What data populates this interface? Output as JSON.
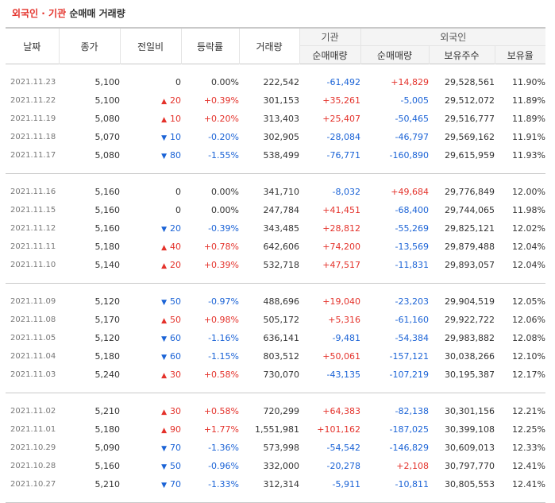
{
  "title": {
    "part1": "외국인",
    "dot": " · ",
    "part2": "기관",
    "part3": " 순매매 거래량"
  },
  "headers": {
    "date": "날짜",
    "close": "종가",
    "change": "전일비",
    "rate": "등락률",
    "volume": "거래량",
    "institution": "기관",
    "inst_net": "순매매량",
    "foreign": "외국인",
    "for_net": "순매매량",
    "holdings": "보유주수",
    "ratio": "보유율"
  },
  "colors": {
    "up": "#e4322b",
    "down": "#1b63d6"
  },
  "groups": [
    [
      {
        "date": "2021.11.23",
        "close": "5,100",
        "dir": "none",
        "change": "0",
        "rate": "0.00%",
        "rate_dir": "none",
        "volume": "222,542",
        "inst": "-61,492",
        "inst_dir": "down",
        "foreign": "+14,829",
        "foreign_dir": "up",
        "holdings": "29,528,561",
        "ratio": "11.90%"
      },
      {
        "date": "2021.11.22",
        "close": "5,100",
        "dir": "up",
        "change": "20",
        "rate": "+0.39%",
        "rate_dir": "up",
        "volume": "301,153",
        "inst": "+35,261",
        "inst_dir": "up",
        "foreign": "-5,005",
        "foreign_dir": "down",
        "holdings": "29,512,072",
        "ratio": "11.89%"
      },
      {
        "date": "2021.11.19",
        "close": "5,080",
        "dir": "up",
        "change": "10",
        "rate": "+0.20%",
        "rate_dir": "up",
        "volume": "313,403",
        "inst": "+25,407",
        "inst_dir": "up",
        "foreign": "-50,465",
        "foreign_dir": "down",
        "holdings": "29,516,777",
        "ratio": "11.89%"
      },
      {
        "date": "2021.11.18",
        "close": "5,070",
        "dir": "down",
        "change": "10",
        "rate": "-0.20%",
        "rate_dir": "down",
        "volume": "302,905",
        "inst": "-28,084",
        "inst_dir": "down",
        "foreign": "-46,797",
        "foreign_dir": "down",
        "holdings": "29,569,162",
        "ratio": "11.91%"
      },
      {
        "date": "2021.11.17",
        "close": "5,080",
        "dir": "down",
        "change": "80",
        "rate": "-1.55%",
        "rate_dir": "down",
        "volume": "538,499",
        "inst": "-76,771",
        "inst_dir": "down",
        "foreign": "-160,890",
        "foreign_dir": "down",
        "holdings": "29,615,959",
        "ratio": "11.93%"
      }
    ],
    [
      {
        "date": "2021.11.16",
        "close": "5,160",
        "dir": "none",
        "change": "0",
        "rate": "0.00%",
        "rate_dir": "none",
        "volume": "341,710",
        "inst": "-8,032",
        "inst_dir": "down",
        "foreign": "+49,684",
        "foreign_dir": "up",
        "holdings": "29,776,849",
        "ratio": "12.00%"
      },
      {
        "date": "2021.11.15",
        "close": "5,160",
        "dir": "none",
        "change": "0",
        "rate": "0.00%",
        "rate_dir": "none",
        "volume": "247,784",
        "inst": "+41,451",
        "inst_dir": "up",
        "foreign": "-68,400",
        "foreign_dir": "down",
        "holdings": "29,744,065",
        "ratio": "11.98%"
      },
      {
        "date": "2021.11.12",
        "close": "5,160",
        "dir": "down",
        "change": "20",
        "rate": "-0.39%",
        "rate_dir": "down",
        "volume": "343,485",
        "inst": "+28,812",
        "inst_dir": "up",
        "foreign": "-55,269",
        "foreign_dir": "down",
        "holdings": "29,825,121",
        "ratio": "12.02%"
      },
      {
        "date": "2021.11.11",
        "close": "5,180",
        "dir": "up",
        "change": "40",
        "rate": "+0.78%",
        "rate_dir": "up",
        "volume": "642,606",
        "inst": "+74,200",
        "inst_dir": "up",
        "foreign": "-13,569",
        "foreign_dir": "down",
        "holdings": "29,879,488",
        "ratio": "12.04%"
      },
      {
        "date": "2021.11.10",
        "close": "5,140",
        "dir": "up",
        "change": "20",
        "rate": "+0.39%",
        "rate_dir": "up",
        "volume": "532,718",
        "inst": "+47,517",
        "inst_dir": "up",
        "foreign": "-11,831",
        "foreign_dir": "down",
        "holdings": "29,893,057",
        "ratio": "12.04%"
      }
    ],
    [
      {
        "date": "2021.11.09",
        "close": "5,120",
        "dir": "down",
        "change": "50",
        "rate": "-0.97%",
        "rate_dir": "down",
        "volume": "488,696",
        "inst": "+19,040",
        "inst_dir": "up",
        "foreign": "-23,203",
        "foreign_dir": "down",
        "holdings": "29,904,519",
        "ratio": "12.05%"
      },
      {
        "date": "2021.11.08",
        "close": "5,170",
        "dir": "up",
        "change": "50",
        "rate": "+0.98%",
        "rate_dir": "up",
        "volume": "505,172",
        "inst": "+5,316",
        "inst_dir": "up",
        "foreign": "-61,160",
        "foreign_dir": "down",
        "holdings": "29,922,722",
        "ratio": "12.06%"
      },
      {
        "date": "2021.11.05",
        "close": "5,120",
        "dir": "down",
        "change": "60",
        "rate": "-1.16%",
        "rate_dir": "down",
        "volume": "636,141",
        "inst": "-9,481",
        "inst_dir": "down",
        "foreign": "-54,384",
        "foreign_dir": "down",
        "holdings": "29,983,882",
        "ratio": "12.08%"
      },
      {
        "date": "2021.11.04",
        "close": "5,180",
        "dir": "down",
        "change": "60",
        "rate": "-1.15%",
        "rate_dir": "down",
        "volume": "803,512",
        "inst": "+50,061",
        "inst_dir": "up",
        "foreign": "-157,121",
        "foreign_dir": "down",
        "holdings": "30,038,266",
        "ratio": "12.10%"
      },
      {
        "date": "2021.11.03",
        "close": "5,240",
        "dir": "up",
        "change": "30",
        "rate": "+0.58%",
        "rate_dir": "up",
        "volume": "730,070",
        "inst": "-43,135",
        "inst_dir": "down",
        "foreign": "-107,219",
        "foreign_dir": "down",
        "holdings": "30,195,387",
        "ratio": "12.17%"
      }
    ],
    [
      {
        "date": "2021.11.02",
        "close": "5,210",
        "dir": "up",
        "change": "30",
        "rate": "+0.58%",
        "rate_dir": "up",
        "volume": "720,299",
        "inst": "+64,383",
        "inst_dir": "up",
        "foreign": "-82,138",
        "foreign_dir": "down",
        "holdings": "30,301,156",
        "ratio": "12.21%"
      },
      {
        "date": "2021.11.01",
        "close": "5,180",
        "dir": "up",
        "change": "90",
        "rate": "+1.77%",
        "rate_dir": "up",
        "volume": "1,551,981",
        "inst": "+101,162",
        "inst_dir": "up",
        "foreign": "-187,025",
        "foreign_dir": "down",
        "holdings": "30,399,108",
        "ratio": "12.25%"
      },
      {
        "date": "2021.10.29",
        "close": "5,090",
        "dir": "down",
        "change": "70",
        "rate": "-1.36%",
        "rate_dir": "down",
        "volume": "573,998",
        "inst": "-54,542",
        "inst_dir": "down",
        "foreign": "-146,829",
        "foreign_dir": "down",
        "holdings": "30,609,013",
        "ratio": "12.33%"
      },
      {
        "date": "2021.10.28",
        "close": "5,160",
        "dir": "down",
        "change": "50",
        "rate": "-0.96%",
        "rate_dir": "down",
        "volume": "332,000",
        "inst": "-20,278",
        "inst_dir": "down",
        "foreign": "+2,108",
        "foreign_dir": "up",
        "holdings": "30,797,770",
        "ratio": "12.41%"
      },
      {
        "date": "2021.10.27",
        "close": "5,210",
        "dir": "down",
        "change": "70",
        "rate": "-1.33%",
        "rate_dir": "down",
        "volume": "312,314",
        "inst": "-5,911",
        "inst_dir": "down",
        "foreign": "-10,811",
        "foreign_dir": "down",
        "holdings": "30,805,553",
        "ratio": "12.41%"
      }
    ]
  ]
}
